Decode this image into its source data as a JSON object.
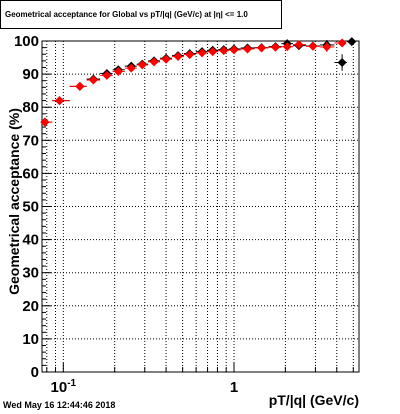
{
  "chart_data": {
    "type": "scatter",
    "title": "Geometrical acceptance for Global vs pT/|q| (GeV/c) at |η| <= 1.0",
    "xlabel": "pT/|q| (GeV/c)",
    "ylabel": "Geometrical acceptance (%)",
    "xscale": "log",
    "xlim": [
      0.075,
      5.4
    ],
    "ylim": [
      0,
      100
    ],
    "yticks": [
      "0",
      "10",
      "20",
      "30",
      "40",
      "50",
      "60",
      "70",
      "80",
      "90",
      "100"
    ],
    "xticks": [
      {
        "value": 0.1,
        "label": "10",
        "sup": "-1"
      },
      {
        "value": 1,
        "label": "1",
        "sup": ""
      }
    ],
    "grid": true,
    "series": [
      {
        "color": "#000000",
        "marker": "diamond",
        "points": [
          {
            "x": 0.078,
            "y": 75.5,
            "ey": 0.8
          },
          {
            "x": 0.095,
            "y": 82.0,
            "ey": 0.5
          },
          {
            "x": 0.125,
            "y": 86.3,
            "ey": 0.5
          },
          {
            "x": 0.15,
            "y": 88.5,
            "ey": 0.4
          },
          {
            "x": 0.18,
            "y": 90.2,
            "ey": 0.4
          },
          {
            "x": 0.21,
            "y": 91.3,
            "ey": 0.4
          },
          {
            "x": 0.25,
            "y": 92.4,
            "ey": 0.4
          },
          {
            "x": 0.29,
            "y": 93.0,
            "ey": 0.4
          },
          {
            "x": 0.34,
            "y": 94.0,
            "ey": 0.4
          },
          {
            "x": 0.4,
            "y": 94.8,
            "ey": 0.4
          },
          {
            "x": 0.47,
            "y": 95.6,
            "ey": 0.4
          },
          {
            "x": 0.55,
            "y": 96.2,
            "ey": 0.4
          },
          {
            "x": 0.65,
            "y": 96.8,
            "ey": 0.4
          },
          {
            "x": 0.75,
            "y": 97.2,
            "ey": 0.4
          },
          {
            "x": 0.87,
            "y": 97.4,
            "ey": 0.5
          },
          {
            "x": 1.0,
            "y": 97.6,
            "ey": 0.5
          },
          {
            "x": 1.2,
            "y": 97.9,
            "ey": 0.6
          },
          {
            "x": 1.45,
            "y": 98.0,
            "ey": 0.7
          },
          {
            "x": 1.75,
            "y": 98.3,
            "ey": 0.8
          },
          {
            "x": 2.05,
            "y": 99.2,
            "ey": 0.9
          },
          {
            "x": 2.4,
            "y": 98.6,
            "ey": 1.0
          },
          {
            "x": 2.9,
            "y": 98.5,
            "ey": 1.1
          },
          {
            "x": 3.5,
            "y": 98.8,
            "ey": 1.5
          },
          {
            "x": 4.3,
            "y": 93.5,
            "ey": 2.5
          },
          {
            "x": 4.9,
            "y": 99.8,
            "ey": 1.0
          }
        ]
      },
      {
        "color": "#ff0000",
        "marker": "diamond",
        "points": [
          {
            "x": 0.078,
            "y": 75.5,
            "ey": 0.8
          },
          {
            "x": 0.095,
            "y": 82.0,
            "ey": 0.5
          },
          {
            "x": 0.125,
            "y": 86.3,
            "ey": 0.5
          },
          {
            "x": 0.15,
            "y": 88.2,
            "ey": 0.4
          },
          {
            "x": 0.18,
            "y": 89.6,
            "ey": 0.4
          },
          {
            "x": 0.21,
            "y": 90.8,
            "ey": 0.4
          },
          {
            "x": 0.25,
            "y": 91.8,
            "ey": 0.4
          },
          {
            "x": 0.29,
            "y": 92.8,
            "ey": 0.4
          },
          {
            "x": 0.34,
            "y": 93.7,
            "ey": 0.4
          },
          {
            "x": 0.4,
            "y": 94.5,
            "ey": 0.4
          },
          {
            "x": 0.47,
            "y": 95.3,
            "ey": 0.4
          },
          {
            "x": 0.55,
            "y": 95.9,
            "ey": 0.4
          },
          {
            "x": 0.65,
            "y": 96.4,
            "ey": 0.4
          },
          {
            "x": 0.75,
            "y": 96.8,
            "ey": 0.4
          },
          {
            "x": 0.87,
            "y": 97.1,
            "ey": 0.5
          },
          {
            "x": 1.0,
            "y": 97.3,
            "ey": 0.5
          },
          {
            "x": 1.2,
            "y": 97.6,
            "ey": 0.6
          },
          {
            "x": 1.45,
            "y": 97.9,
            "ey": 0.7
          },
          {
            "x": 1.75,
            "y": 98.1,
            "ey": 0.8
          },
          {
            "x": 2.05,
            "y": 98.3,
            "ey": 0.9
          },
          {
            "x": 2.4,
            "y": 98.9,
            "ey": 1.0
          },
          {
            "x": 2.9,
            "y": 98.4,
            "ey": 1.1
          },
          {
            "x": 3.5,
            "y": 98.2,
            "ey": 1.5
          },
          {
            "x": 4.3,
            "y": 99.4,
            "ey": 1.0
          }
        ]
      }
    ]
  },
  "footer": {
    "timestamp": "Wed May 16 12:44:46 2018"
  }
}
